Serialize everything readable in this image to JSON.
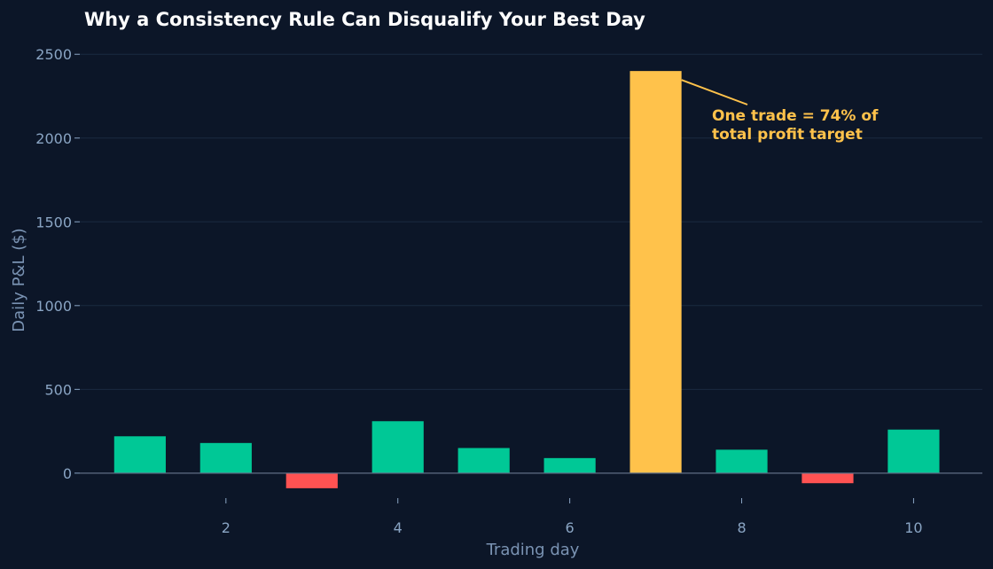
{
  "colors": {
    "background": "#0c1628",
    "gain": "#00c896",
    "loss": "#ff5252",
    "highlight": "#ffc24b",
    "grid": "#1a2a40",
    "axis_text": "#8aa5c4",
    "baseline": "#5f6f85"
  },
  "chart_data": {
    "type": "bar",
    "title": "Why a Consistency Rule Can Disqualify Your Best Day",
    "xlabel": "Trading day",
    "ylabel": "Daily P&L ($)",
    "x": [
      1,
      2,
      3,
      4,
      5,
      6,
      7,
      8,
      9,
      10
    ],
    "values": [
      220,
      180,
      -90,
      310,
      150,
      90,
      2400,
      140,
      -60,
      260
    ],
    "highlight_index": 6,
    "xticks": [
      2,
      4,
      6,
      8,
      10
    ],
    "yticks": [
      0,
      500,
      1000,
      1500,
      2000,
      2500
    ],
    "xlim": [
      0.3,
      10.8
    ],
    "ylim": [
      -170,
      2570
    ],
    "grid": true,
    "annotation": {
      "lines": [
        "One trade = 74% of",
        "total profit target"
      ],
      "target_x": 7,
      "target_y": 2400
    }
  }
}
